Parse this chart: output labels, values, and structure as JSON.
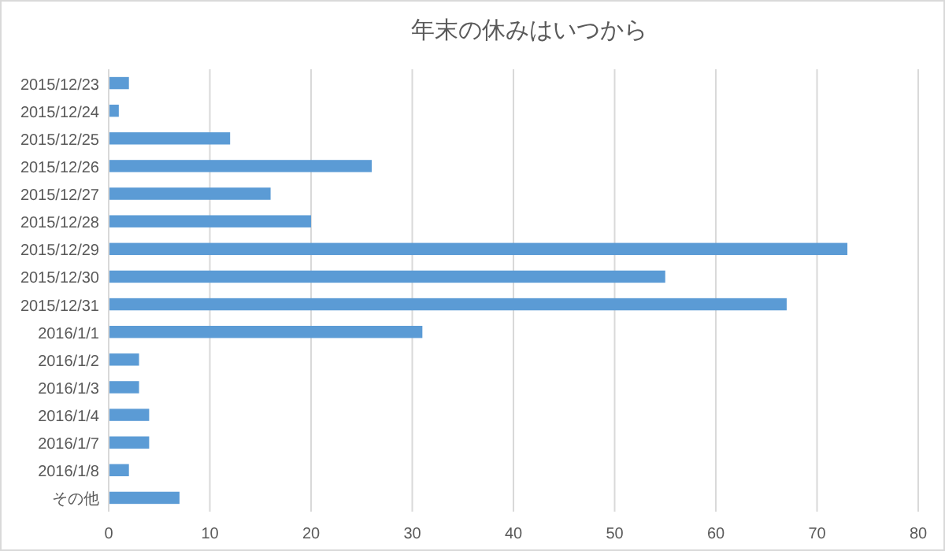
{
  "chart_data": {
    "type": "bar",
    "orientation": "horizontal",
    "title": "年末の休みはいつから",
    "categories": [
      "2015/12/23",
      "2015/12/24",
      "2015/12/25",
      "2015/12/26",
      "2015/12/27",
      "2015/12/28",
      "2015/12/29",
      "2015/12/30",
      "2015/12/31",
      "2016/1/1",
      "2016/1/2",
      "2016/1/3",
      "2016/1/4",
      "2016/1/7",
      "2016/1/8",
      "その他"
    ],
    "values": [
      2,
      1,
      12,
      26,
      16,
      20,
      73,
      55,
      67,
      31,
      3,
      3,
      4,
      4,
      2,
      7
    ],
    "color": "#5b9bd5",
    "xlim": [
      0,
      80
    ],
    "xticks": [
      0,
      10,
      20,
      30,
      40,
      50,
      60,
      70,
      80
    ],
    "grid": "x"
  }
}
